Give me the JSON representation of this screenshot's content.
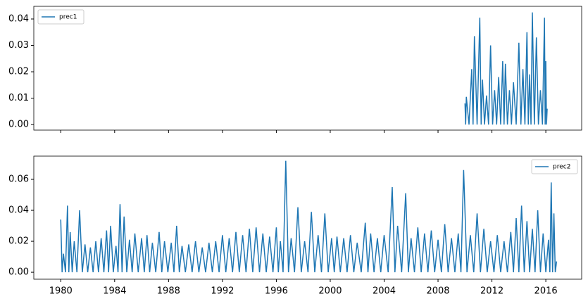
{
  "chart_data": [
    {
      "type": "line",
      "x": [
        2010.0,
        2010.05,
        2010.1,
        2010.3,
        2010.5,
        2010.6,
        2010.7,
        2010.9,
        2011.1,
        2011.2,
        2011.3,
        2011.45,
        2011.6,
        2011.75,
        2011.9,
        2012.05,
        2012.2,
        2012.35,
        2012.5,
        2012.65,
        2012.8,
        2012.9,
        2013.0,
        2013.15,
        2013.3,
        2013.45,
        2013.6,
        2013.8,
        2014.0,
        2014.15,
        2014.3,
        2014.45,
        2014.6,
        2014.7,
        2014.8,
        2014.9,
        2015.0,
        2015.15,
        2015.3,
        2015.45,
        2015.6,
        2015.75,
        2015.9,
        2015.95,
        2016.0,
        2016.05,
        2016.1
      ],
      "series": [
        {
          "name": "prec1",
          "color": "#1f77b4",
          "values": [
            0.008,
            0,
            0.0105,
            0,
            0.021,
            0,
            0.0335,
            0,
            0.0405,
            0,
            0.017,
            0,
            0.011,
            0,
            0.03,
            0,
            0.013,
            0,
            0.018,
            0,
            0.024,
            0,
            0.023,
            0,
            0.013,
            0,
            0.016,
            0,
            0.031,
            0,
            0.021,
            0,
            0.035,
            0,
            0.019,
            0,
            0.0425,
            0,
            0.033,
            0,
            0.013,
            0,
            0.0405,
            0,
            0.024,
            0,
            0.006
          ]
        }
      ],
      "xlim": [
        1978.0,
        2018.66
      ],
      "ylim": [
        -0.0021,
        0.0448
      ],
      "yticks": [
        {
          "value": 0,
          "label": "0.00"
        },
        {
          "value": 0.01,
          "label": "0.01"
        },
        {
          "value": 0.02,
          "label": "0.02"
        },
        {
          "value": 0.03,
          "label": "0.03"
        },
        {
          "value": 0.04,
          "label": "0.04"
        }
      ],
      "legend": "upper left"
    },
    {
      "type": "line",
      "x": [
        1980.0,
        1980.1,
        1980.2,
        1980.35,
        1980.5,
        1980.6,
        1980.7,
        1980.85,
        1981.0,
        1981.2,
        1981.4,
        1981.6,
        1981.8,
        1982.0,
        1982.2,
        1982.4,
        1982.6,
        1982.8,
        1983.0,
        1983.2,
        1983.4,
        1983.55,
        1983.7,
        1983.9,
        1984.1,
        1984.25,
        1984.4,
        1984.55,
        1984.7,
        1984.9,
        1985.1,
        1985.3,
        1985.5,
        1985.75,
        1986.0,
        1986.2,
        1986.4,
        1986.6,
        1986.8,
        1987.05,
        1987.3,
        1987.5,
        1987.7,
        1987.95,
        1988.2,
        1988.4,
        1988.6,
        1988.8,
        1989.0,
        1989.25,
        1989.5,
        1989.75,
        1990.0,
        1990.25,
        1990.5,
        1990.75,
        1991.0,
        1991.25,
        1991.5,
        1991.75,
        1992.0,
        1992.25,
        1992.5,
        1992.75,
        1993.0,
        1993.25,
        1993.5,
        1993.75,
        1994.0,
        1994.25,
        1994.5,
        1994.75,
        1995.0,
        1995.25,
        1995.5,
        1995.75,
        1996.0,
        1996.15,
        1996.3,
        1996.5,
        1996.7,
        1996.9,
        1997.1,
        1997.35,
        1997.6,
        1997.85,
        1998.1,
        1998.35,
        1998.6,
        1998.85,
        1999.1,
        1999.35,
        1999.6,
        1999.85,
        2000.1,
        2000.3,
        2000.5,
        2000.75,
        2001.0,
        2001.25,
        2001.5,
        2001.75,
        2002.0,
        2002.3,
        2002.6,
        2002.8,
        2003.0,
        2003.25,
        2003.5,
        2003.75,
        2004.0,
        2004.3,
        2004.6,
        2004.8,
        2005.0,
        2005.3,
        2005.6,
        2005.8,
        2006.0,
        2006.25,
        2006.5,
        2006.75,
        2007.0,
        2007.25,
        2007.5,
        2007.75,
        2008.0,
        2008.25,
        2008.5,
        2008.75,
        2009.0,
        2009.25,
        2009.5,
        2009.7,
        2009.9,
        2010.15,
        2010.4,
        2010.65,
        2010.9,
        2011.15,
        2011.4,
        2011.65,
        2011.9,
        2012.15,
        2012.4,
        2012.65,
        2012.9,
        2013.15,
        2013.4,
        2013.6,
        2013.8,
        2014.0,
        2014.2,
        2014.4,
        2014.6,
        2014.8,
        2015.0,
        2015.2,
        2015.4,
        2015.6,
        2015.8,
        2016.0,
        2016.2,
        2016.3,
        2016.4,
        2016.5,
        2016.6,
        2016.7,
        2016.8
      ],
      "series": [
        {
          "name": "prec2",
          "color": "#1f77b4",
          "values": [
            0.034,
            0,
            0.012,
            0,
            0.043,
            0,
            0.026,
            0,
            0.02,
            0,
            0.04,
            0,
            0.018,
            0,
            0.016,
            0,
            0.02,
            0,
            0.022,
            0,
            0.027,
            0,
            0.03,
            0,
            0.017,
            0,
            0.044,
            0,
            0.036,
            0,
            0.021,
            0,
            0.025,
            0,
            0.022,
            0,
            0.024,
            0,
            0.019,
            0,
            0.026,
            0,
            0.02,
            0,
            0.019,
            0,
            0.03,
            0,
            0.017,
            0,
            0.018,
            0,
            0.02,
            0,
            0.016,
            0,
            0.019,
            0,
            0.02,
            0,
            0.024,
            0,
            0.022,
            0,
            0.026,
            0,
            0.024,
            0,
            0.028,
            0,
            0.029,
            0,
            0.025,
            0,
            0.023,
            0,
            0.029,
            0,
            0.02,
            0,
            0.072,
            0,
            0.022,
            0,
            0.042,
            0,
            0.02,
            0,
            0.039,
            0,
            0.024,
            0,
            0.038,
            0,
            0.022,
            0,
            0.023,
            0,
            0.022,
            0,
            0.024,
            0,
            0.019,
            0,
            0.032,
            0,
            0.025,
            0,
            0.022,
            0,
            0.024,
            0,
            0.055,
            0,
            0.03,
            0,
            0.051,
            0,
            0.022,
            0,
            0.029,
            0,
            0.025,
            0,
            0.027,
            0,
            0.021,
            0,
            0.031,
            0,
            0.022,
            0,
            0.025,
            0,
            0.066,
            0,
            0.024,
            0,
            0.038,
            0,
            0.028,
            0,
            0.02,
            0,
            0.024,
            0,
            0.02,
            0,
            0.026,
            0,
            0.035,
            0,
            0.043,
            0,
            0.033,
            0,
            0.028,
            0,
            0.04,
            0,
            0.025,
            0,
            0.021,
            0,
            0.058,
            0,
            0.038,
            0,
            0.007
          ]
        }
      ],
      "xlim": [
        1978.0,
        2018.66
      ],
      "xticks": [
        1980,
        1984,
        1988,
        1992,
        1996,
        2000,
        2004,
        2008,
        2012,
        2016
      ],
      "ylim": [
        -0.0045,
        0.075
      ],
      "yticks": [
        {
          "value": 0,
          "label": "0.00"
        },
        {
          "value": 0.02,
          "label": "0.02"
        },
        {
          "value": 0.04,
          "label": "0.04"
        },
        {
          "value": 0.06,
          "label": "0.06"
        }
      ],
      "legend": "upper right"
    }
  ]
}
